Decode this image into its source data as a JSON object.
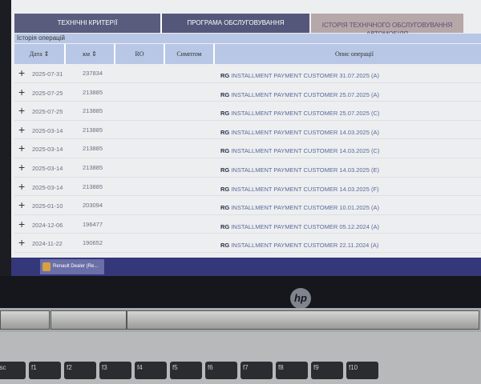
{
  "tabs": [
    "Технічні критерії",
    "Програма обслуговування",
    "Історія технічного обслуговування автомобіля"
  ],
  "section_title": "Історія операцій",
  "columns": [
    "Дата ⇕",
    "км ⇕",
    "RO",
    "Симптом",
    "Опис операції"
  ],
  "rows": [
    {
      "date": "2025-07-31",
      "km": "237834",
      "code": "RG",
      "desc": "INSTALLMENT PAYMENT CUSTOMER 31.07.2025 (A)"
    },
    {
      "date": "2025-07-25",
      "km": "213885",
      "code": "RG",
      "desc": "INSTALLMENT PAYMENT CUSTOMER 25.07.2025 (A)"
    },
    {
      "date": "2025-07-25",
      "km": "213885",
      "code": "RG",
      "desc": "INSTALLMENT PAYMENT CUSTOMER 25.07.2025 (C)"
    },
    {
      "date": "2025-03-14",
      "km": "213885",
      "code": "RG",
      "desc": "INSTALLMENT PAYMENT CUSTOMER 14.03.2025 (A)"
    },
    {
      "date": "2025-03-14",
      "km": "213885",
      "code": "RG",
      "desc": "INSTALLMENT PAYMENT CUSTOMER 14.03.2025 (C)"
    },
    {
      "date": "2025-03-14",
      "km": "213885",
      "code": "RG",
      "desc": "INSTALLMENT PAYMENT CUSTOMER 14.03.2025 (E)"
    },
    {
      "date": "2025-03-14",
      "km": "213885",
      "code": "RG",
      "desc": "INSTALLMENT PAYMENT CUSTOMER 14.03.2025 (F)"
    },
    {
      "date": "2025-01-10",
      "km": "203094",
      "code": "RG",
      "desc": "INSTALLMENT PAYMENT CUSTOMER 10.01.2025 (A)"
    },
    {
      "date": "2024-12-06",
      "km": "196477",
      "code": "RG",
      "desc": "INSTALLMENT PAYMENT CUSTOMER 05.12.2024 (A)"
    },
    {
      "date": "2024-11-22",
      "km": "190652",
      "code": "RG",
      "desc": "INSTALLMENT PAYMENT CUSTOMER 22.11.2024 (A)"
    }
  ],
  "taskbar": {
    "app_label": "Renault Dealer (Re..."
  },
  "laptop": {
    "logo": "hp",
    "keys": [
      "esc",
      "f1",
      "f2",
      "f3",
      "f4",
      "f5",
      "f6",
      "f7",
      "f8",
      "f9",
      "f10"
    ]
  }
}
